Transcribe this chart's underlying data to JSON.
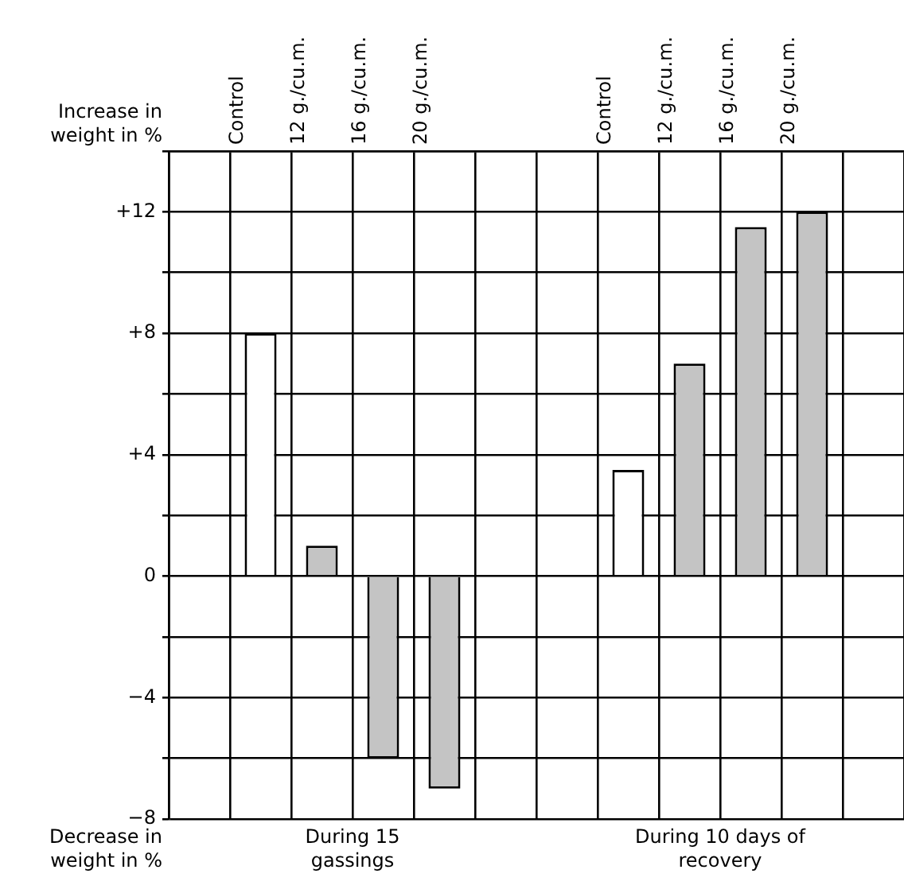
{
  "chart_data": {
    "type": "bar",
    "ylabel": "Increase in weight in %",
    "categories": [
      null,
      "Control",
      "12 g./cu.m.",
      "16 g./cu.m.",
      "20 g./cu.m.",
      null,
      null,
      "Control",
      "12 g./cu.m.",
      "16 g./cu.m.",
      "20 g./cu.m.",
      null
    ],
    "values": [
      null,
      8,
      1,
      -6,
      -7,
      null,
      null,
      3.5,
      7,
      11.5,
      12,
      null
    ],
    "colors": [
      "#ffffff",
      "#ffffff",
      "#c4c4c4",
      "#c4c4c4",
      "#c4c4c4",
      "#ffffff",
      "#ffffff",
      "#ffffff",
      "#c4c4c4",
      "#c4c4c4",
      "#c4c4c4",
      "#ffffff"
    ],
    "ylim": [
      -8,
      14
    ],
    "yticks": [
      {
        "value": -8,
        "label": "−8"
      },
      {
        "value": -6,
        "label": null
      },
      {
        "value": -4,
        "label": "−4"
      },
      {
        "value": -2,
        "label": null
      },
      0,
      {
        "value": 2,
        "label": null
      },
      {
        "value": 4,
        "label": "+4"
      },
      {
        "value": 6,
        "label": null
      },
      {
        "value": 8,
        "label": "+8"
      },
      {
        "value": 10,
        "label": null
      },
      {
        "value": 12,
        "label": "+12"
      },
      {
        "value": 14,
        "label": null
      }
    ],
    "grid": true,
    "annotations": [
      "Decrease in weight in %",
      "During 15 gassings",
      "During 10 days of recovery"
    ]
  }
}
